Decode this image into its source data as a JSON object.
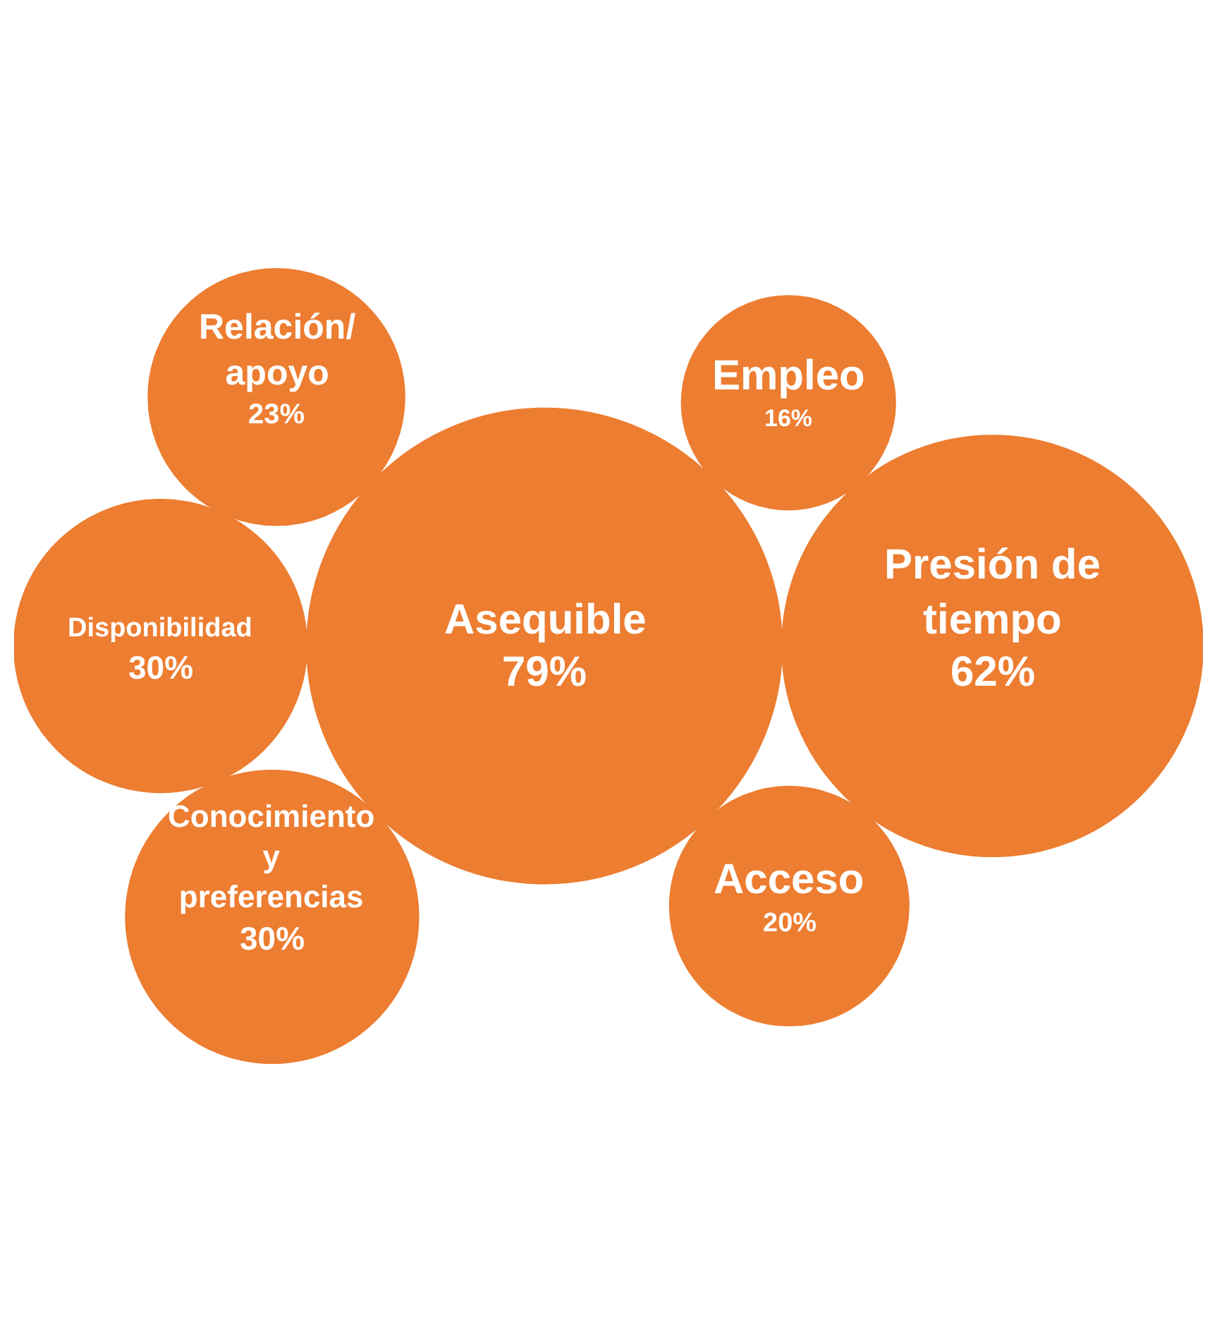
{
  "chart_data": {
    "type": "other",
    "categories": [
      "Asequible",
      "Presión de\ntiempo",
      "Disponibilidad",
      "Conocimiento\ny\npreferencias",
      "Relación/\napoyo",
      "Acceso",
      "Empleo"
    ],
    "values": [
      79,
      62,
      30,
      30,
      23,
      20,
      16
    ],
    "value_labels": [
      "79%",
      "62%",
      "30%",
      "30%",
      "23%",
      "20%",
      "16%"
    ],
    "color": "#ed7d31"
  }
}
